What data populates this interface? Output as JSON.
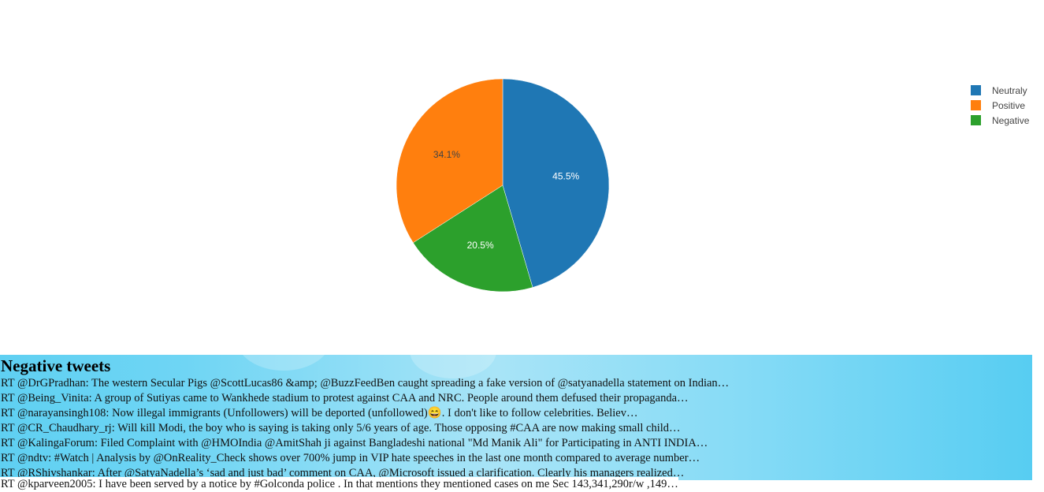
{
  "chart_data": {
    "type": "pie",
    "series": [
      {
        "name": "Neutraly",
        "value": 45.5,
        "label": "45.5%",
        "color": "#1f77b4",
        "label_color": "#ffffff"
      },
      {
        "name": "Negative",
        "value": 20.5,
        "label": "20.5%",
        "color": "#2ca02c",
        "label_color": "#ffffff"
      },
      {
        "name": "Positive",
        "value": 34.1,
        "label": "34.1%",
        "color": "#ff7f0e",
        "label_color": "#444444"
      }
    ],
    "legend": {
      "placement": "top-right",
      "entries": [
        "Neutraly",
        "Positive",
        "Negative"
      ]
    },
    "direction": "clockwise",
    "start": "top"
  },
  "tweets": {
    "title": "Negative tweets",
    "items": [
      "RT @DrGPradhan: The western Secular Pigs @ScottLucas86 &amp; @BuzzFeedBen caught spreading a fake version of @satyanadella statement on Indian…",
      "RT @Being_Vinita: A group of Sutiyas came to Wankhede stadium to protest against CAA and NRC. People around them defused their propaganda…",
      "RT @narayansingh108: Now illegal immigrants (Unfollowers) will be deported (unfollowed)😄. I don't like to follow celebrities. Believ…",
      "RT @CR_Chaudhary_rj: Will kill Modi, the boy who is saying is taking only 5/6 years of age. Those opposing #CAA are now making small child…",
      "RT @KalingaForum: Filed Complaint with @HMOIndia @AmitShah ji against Bangladeshi national \"Md Manik Ali\" for Participating in ANTI INDIA…",
      "RT @ndtv: #Watch | Analysis by @OnReality_Check shows over 700% jump in VIP hate speeches in the last one month compared to average number…",
      "RT @RShivshankar: After @SatyaNadella’s ‘sad and just bad’ comment on CAA, @Microsoft issued a clarification. Clearly his managers realized…"
    ],
    "overflow_item": "RT @kparveen2005: I have been served by a notice by #Golconda police . In that mentions they mentioned cases on me Sec 143,341,290r/w ,149…"
  }
}
